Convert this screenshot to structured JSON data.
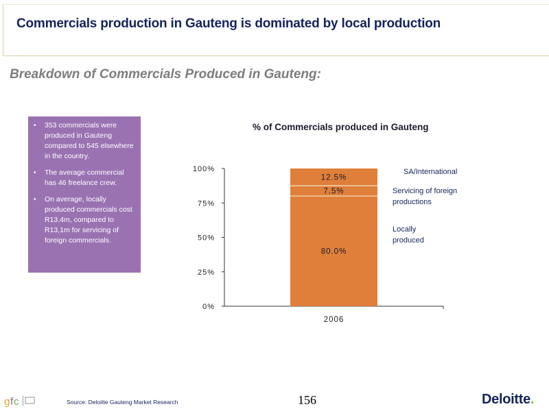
{
  "header": {
    "title": "Commercials production in Gauteng is dominated by local production"
  },
  "subtitle": "Breakdown of Commercials Produced in Gauteng:",
  "bullets": [
    "353 commercials were produced in Gauteng compared to 545 elsewhere in the country.",
    "The average commercial has 46 freelance crew.",
    "On average, locally produced commercials cost R13.4m, compared to R13,1m for servicing of foreign commercials."
  ],
  "chart_data": {
    "type": "bar",
    "stacked": true,
    "title": "% of Commercials produced in Gauteng",
    "categories": [
      "2006"
    ],
    "ylim": [
      0,
      100
    ],
    "yticks": [
      "0%",
      "25%",
      "50%",
      "75%",
      "100%"
    ],
    "series": [
      {
        "name": "Locally produced",
        "values": [
          80.0
        ],
        "label": "80.0%",
        "color": "#e07f3a"
      },
      {
        "name": "Servicing of foreign productions",
        "values": [
          7.5
        ],
        "label": "7.5%",
        "color": "#e07f3a"
      },
      {
        "name": "SA/International",
        "values": [
          12.5
        ],
        "label": "12.5%",
        "color": "#e07f3a"
      }
    ],
    "legend_position": "right",
    "grid": false
  },
  "footer": {
    "source": "Source: Deloitte Gauteng Market Research",
    "page_number": "156",
    "brand": "Deloitte",
    "brand_dot": ".",
    "logo_text": "gfc"
  }
}
